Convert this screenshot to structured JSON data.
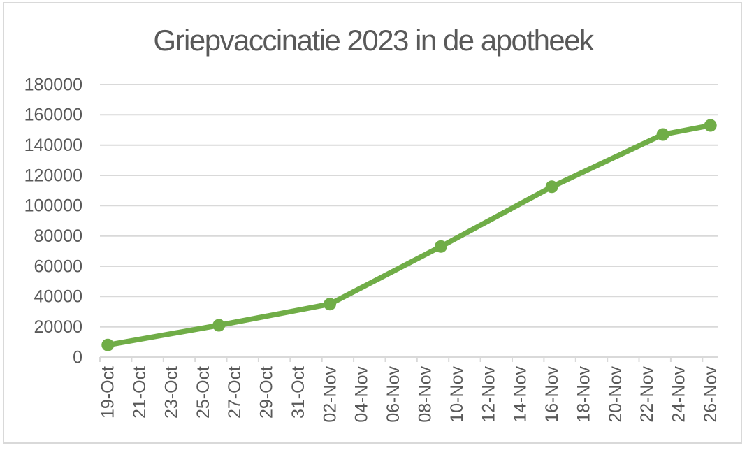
{
  "chart_data": {
    "type": "line",
    "title": "Griepvaccinatie 2023 in de apotheek",
    "x_axis": {
      "labels": [
        "19-Oct",
        "21-Oct",
        "23-Oct",
        "25-Oct",
        "27-Oct",
        "29-Oct",
        "31-Oct",
        "02-Nov",
        "04-Nov",
        "06-Nov",
        "08-Nov",
        "10-Nov",
        "12-Nov",
        "14-Nov",
        "16-Nov",
        "18-Nov",
        "20-Nov",
        "22-Nov",
        "24-Nov",
        "26-Nov"
      ],
      "label_every_days": 2,
      "total_days": 39,
      "tick_marks": "outside",
      "label_rotation_degrees": -90
    },
    "y_axis": {
      "min": 0,
      "max": 180000,
      "step": 20000,
      "ticks": [
        0,
        20000,
        40000,
        60000,
        80000,
        100000,
        120000,
        140000,
        160000,
        180000
      ]
    },
    "series": [
      {
        "points": [
          {
            "date": "19-Oct",
            "day": 0,
            "value": 8000
          },
          {
            "date": "26-Oct",
            "day": 7,
            "value": 21000
          },
          {
            "date": "02-Nov",
            "day": 14,
            "value": 35000
          },
          {
            "date": "09-Nov",
            "day": 21,
            "value": 73000
          },
          {
            "date": "16-Nov",
            "day": 28,
            "value": 112500
          },
          {
            "date": "23-Nov",
            "day": 35,
            "value": 147000
          },
          {
            "date": "26-Nov",
            "day": 38,
            "value": 153000
          }
        ]
      }
    ],
    "grid": true,
    "legend": "none",
    "ylim": [
      0,
      180000
    ],
    "colors": {
      "line": "#70AD47",
      "marker": "#70AD47",
      "text": "#595959",
      "gridline": "#D9D9D9",
      "axis_line": "#D9D9D9",
      "frame_border": "#D9D9D9",
      "background": "#FFFFFF"
    }
  }
}
